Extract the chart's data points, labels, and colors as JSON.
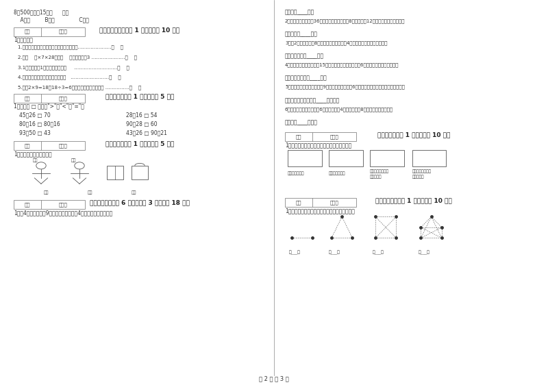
{
  "bg_color": "#ffffff",
  "footer": "第 2 页 共 3 页",
  "section5_items": [
    "1.一个数的最高位是万位，这个数是四位数。…………………（    ）",
    "2.在（    ）×7×28中，（    ）里最大应填3 …………………（    ）",
    "3.1千克铁条和1千克木条一样重。     ………………………（    ）",
    "4.称物体的质量可以用天平和米尺。   ……………………（    ）",
    "5.计劗2×9=18和18÷3=6用的是同一句乘法口诀。 ……………（    ）"
  ],
  "compare_rows": [
    [
      "45＋26 □ 70",
      "28＋16 □ 54"
    ],
    [
      "80－16 □ 80＋16",
      "90－28 □ 60"
    ],
    [
      "93－50 □ 43",
      "43＋26 □ 90－21"
    ]
  ]
}
